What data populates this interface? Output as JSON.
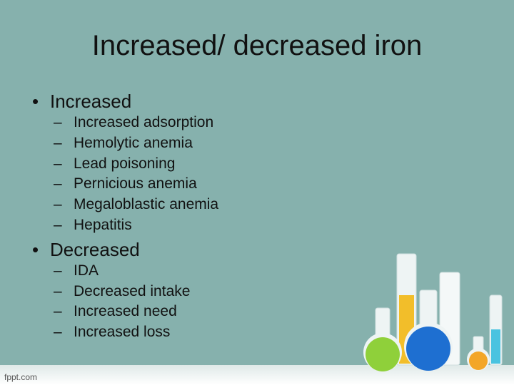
{
  "title": "Increased/ decreased iron",
  "bullets": [
    {
      "text": "Increased",
      "items": [
        "Increased adsorption",
        "Hemolytic anemia",
        "Lead poisoning",
        "Pernicious anemia",
        "Megaloblastic anemia",
        "Hepatitis"
      ]
    },
    {
      "text": "Decreased",
      "items": [
        "IDA",
        "Decreased intake",
        "Increased need",
        "Increased loss"
      ]
    }
  ],
  "footer": "fppt.com"
}
